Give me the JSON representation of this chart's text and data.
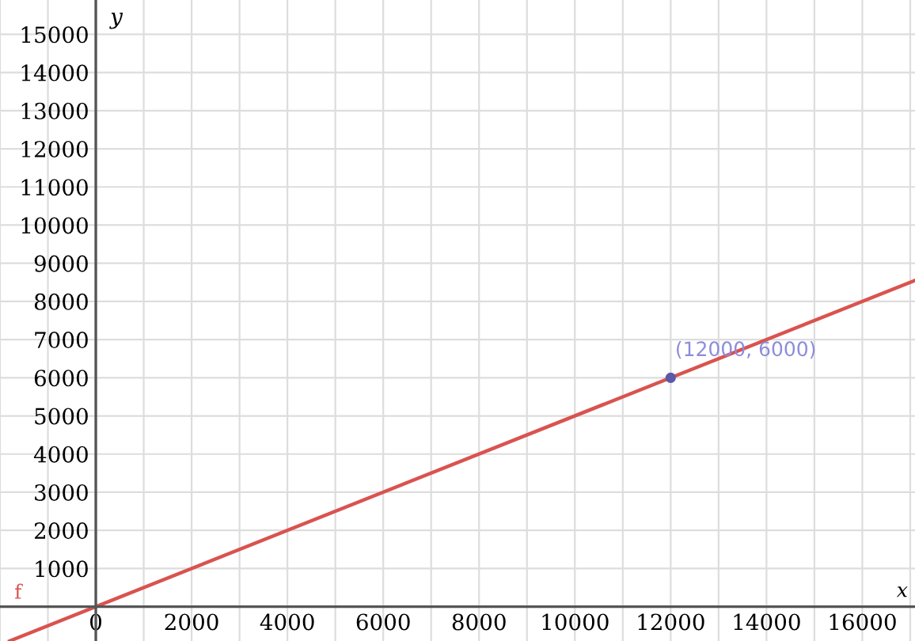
{
  "chart_data": {
    "type": "line",
    "xlabel": "x",
    "ylabel": "y",
    "xlim": [
      -2000,
      17100
    ],
    "ylim": [
      -900,
      15900
    ],
    "xticks": [
      0,
      2000,
      4000,
      6000,
      8000,
      10000,
      12000,
      14000,
      16000
    ],
    "yticks": [
      1000,
      2000,
      3000,
      4000,
      5000,
      6000,
      7000,
      8000,
      9000,
      10000,
      11000,
      12000,
      13000,
      14000,
      15000
    ],
    "grid": true,
    "legend": false,
    "series": [
      {
        "name": "f",
        "color": "#d9534f",
        "x": [
          -1800,
          17100
        ],
        "values": [
          -900,
          8550
        ],
        "marker": "none"
      },
      {
        "type": "scatter",
        "color": "#5a5aa8",
        "x": [
          12000
        ],
        "values": [
          6000
        ],
        "marker": "circle"
      }
    ],
    "annotations": [
      {
        "text": "(12000, 6000)",
        "x": 12000,
        "y": 6000
      }
    ]
  }
}
